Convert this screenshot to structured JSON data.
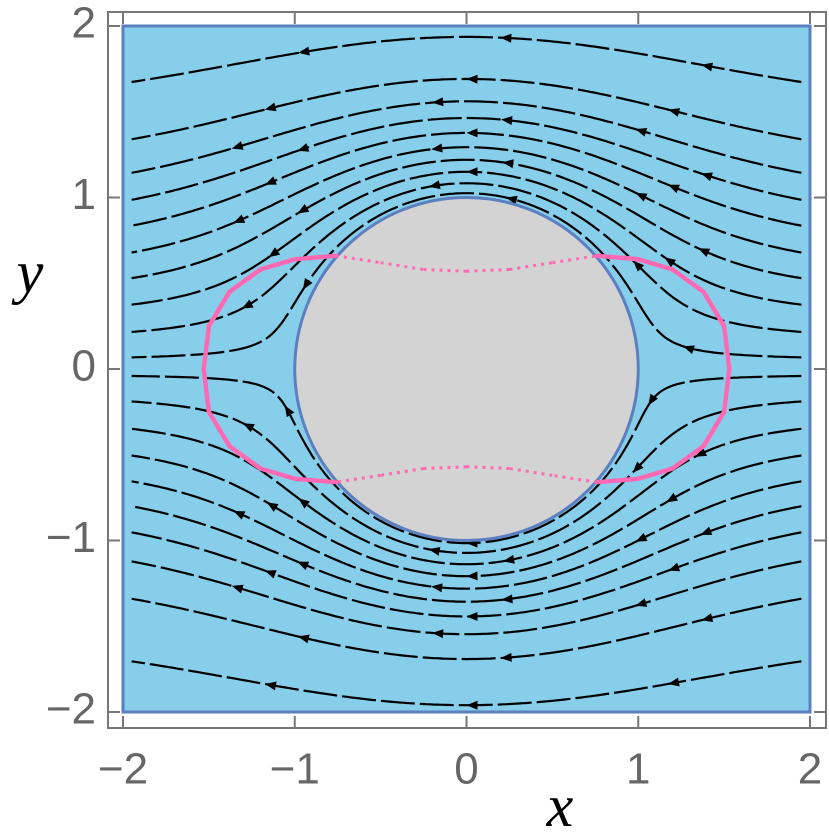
{
  "chart_data": {
    "type": "streamplot",
    "xlabel": "x",
    "ylabel": "y",
    "xlim": [
      -2,
      2
    ],
    "ylim": [
      -2,
      2
    ],
    "xticks": [
      {
        "value": -2,
        "label": "−2"
      },
      {
        "value": -1,
        "label": "−1"
      },
      0,
      1,
      2
    ],
    "yticks": [
      {
        "value": -2,
        "label": "−2"
      },
      {
        "value": -1,
        "label": "−1"
      },
      0,
      1,
      2
    ],
    "background": "#87ceeb",
    "obstacle": {
      "radius": 1,
      "color": "#d3d3d3"
    },
    "streamlines": {
      "color": "#000000",
      "values": [
        1.42,
        1.1,
        0.92,
        0.78,
        0.65,
        0.52,
        0.4,
        0.28,
        0.16,
        0.05,
        -0.03,
        -0.14,
        -0.26,
        -0.38,
        -0.5,
        -0.62,
        -0.75,
        -0.9,
        -1.1,
        -1.45
      ]
    },
    "contour": {
      "color": "#ff69b4",
      "x": [
        0.76,
        1.0,
        1.2,
        1.38,
        1.5,
        1.53,
        1.5,
        1.38,
        1.2,
        1.0,
        0.76,
        0.5,
        0.25,
        0,
        -0.25,
        -0.5,
        -0.76,
        -1.0,
        -1.2,
        -1.38,
        -1.5,
        -1.53,
        -1.5,
        -1.38,
        -1.2,
        -1.0,
        -0.76,
        -0.5,
        -0.25,
        0,
        0.25,
        0.5,
        0.76
      ],
      "y": [
        0.66,
        0.64,
        0.58,
        0.45,
        0.25,
        0,
        -0.25,
        -0.45,
        -0.58,
        -0.64,
        -0.66,
        -0.62,
        -0.58,
        -0.57,
        -0.58,
        -0.62,
        -0.66,
        -0.64,
        -0.58,
        -0.45,
        -0.25,
        0,
        0.25,
        0.45,
        0.58,
        0.64,
        0.66,
        0.62,
        0.58,
        0.57,
        0.58,
        0.62,
        0.66
      ]
    }
  }
}
